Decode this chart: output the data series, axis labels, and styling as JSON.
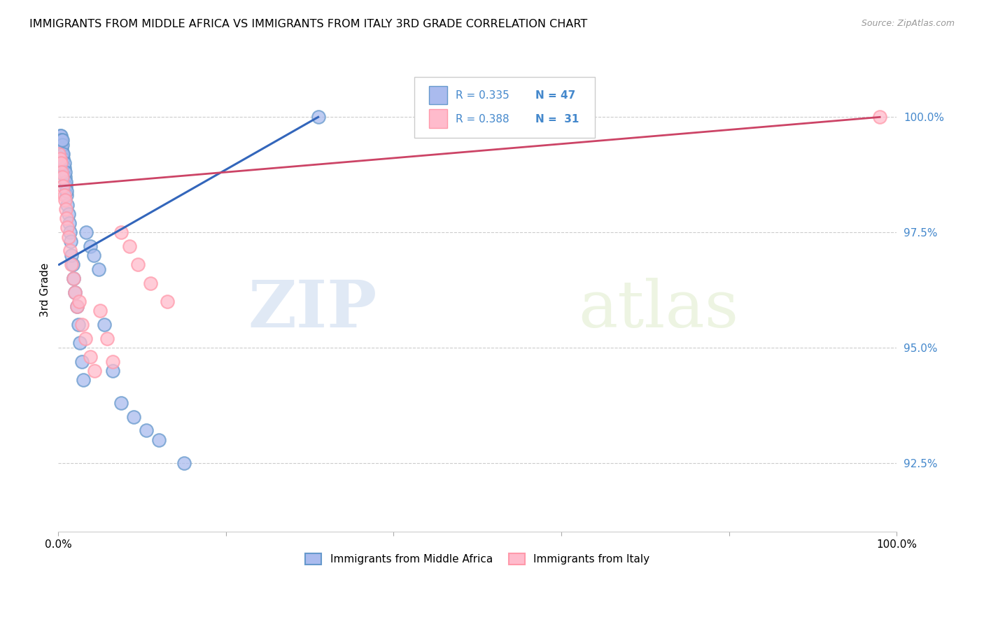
{
  "title": "IMMIGRANTS FROM MIDDLE AFRICA VS IMMIGRANTS FROM ITALY 3RD GRADE CORRELATION CHART",
  "source_text": "Source: ZipAtlas.com",
  "ylabel": "3rd Grade",
  "y_ticks": [
    92.5,
    95.0,
    97.5,
    100.0
  ],
  "xlim": [
    0.0,
    1.0
  ],
  "ylim": [
    91.0,
    101.5
  ],
  "blue_face_color": "#aabbee",
  "blue_edge_color": "#6699CC",
  "pink_face_color": "#ffbbcc",
  "pink_edge_color": "#FF99AA",
  "blue_line_color": "#3366BB",
  "pink_line_color": "#CC4466",
  "watermark_zip": "ZIP",
  "watermark_atlas": "atlas",
  "blue_r": "0.335",
  "blue_n": "47",
  "pink_r": "0.388",
  "pink_n": "31",
  "blue_x": [
    0.001,
    0.002,
    0.002,
    0.003,
    0.003,
    0.003,
    0.004,
    0.004,
    0.005,
    0.005,
    0.005,
    0.006,
    0.006,
    0.007,
    0.007,
    0.008,
    0.008,
    0.009,
    0.009,
    0.01,
    0.01,
    0.011,
    0.012,
    0.013,
    0.014,
    0.015,
    0.016,
    0.017,
    0.018,
    0.02,
    0.022,
    0.024,
    0.026,
    0.028,
    0.03,
    0.033,
    0.038,
    0.042,
    0.048,
    0.055,
    0.065,
    0.075,
    0.09,
    0.105,
    0.12,
    0.15,
    0.31
  ],
  "blue_y": [
    98.8,
    99.5,
    99.6,
    99.4,
    99.5,
    99.6,
    99.3,
    99.5,
    99.2,
    99.4,
    99.5,
    99.1,
    99.2,
    98.9,
    99.0,
    98.7,
    98.8,
    98.5,
    98.6,
    98.3,
    98.4,
    98.1,
    97.9,
    97.7,
    97.5,
    97.3,
    97.0,
    96.8,
    96.5,
    96.2,
    95.9,
    95.5,
    95.1,
    94.7,
    94.3,
    97.5,
    97.2,
    97.0,
    96.7,
    95.5,
    94.5,
    93.8,
    93.5,
    93.2,
    93.0,
    92.5,
    100.0
  ],
  "pink_x": [
    0.001,
    0.002,
    0.003,
    0.004,
    0.005,
    0.006,
    0.007,
    0.008,
    0.009,
    0.01,
    0.011,
    0.012,
    0.014,
    0.016,
    0.018,
    0.02,
    0.022,
    0.025,
    0.028,
    0.032,
    0.038,
    0.043,
    0.05,
    0.058,
    0.065,
    0.075,
    0.085,
    0.095,
    0.11,
    0.13,
    0.98
  ],
  "pink_y": [
    99.2,
    99.1,
    99.0,
    98.8,
    98.7,
    98.5,
    98.3,
    98.2,
    98.0,
    97.8,
    97.6,
    97.4,
    97.1,
    96.8,
    96.5,
    96.2,
    95.9,
    96.0,
    95.5,
    95.2,
    94.8,
    94.5,
    95.8,
    95.2,
    94.7,
    97.5,
    97.2,
    96.8,
    96.4,
    96.0,
    100.0
  ],
  "blue_trend_x0": 0.001,
  "blue_trend_x1": 0.31,
  "blue_trend_y0": 96.8,
  "blue_trend_y1": 100.0,
  "pink_trend_x0": 0.001,
  "pink_trend_x1": 0.98,
  "pink_trend_y0": 98.5,
  "pink_trend_y1": 100.0
}
